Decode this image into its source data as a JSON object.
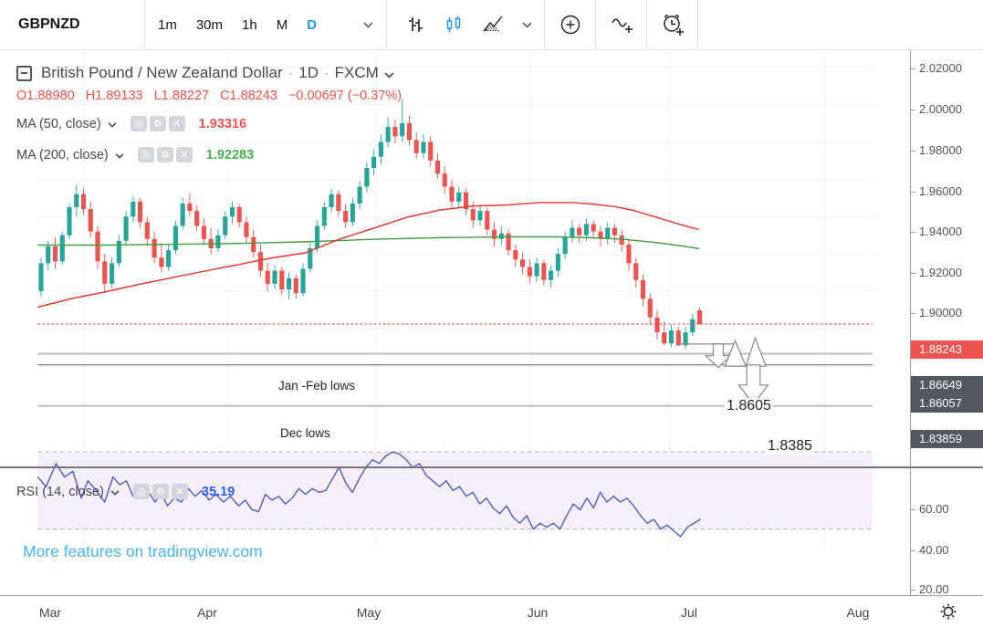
{
  "toolbar": {
    "symbol": "GBPNZD",
    "timeframes": [
      "1m",
      "30m",
      "1h",
      "M",
      "D"
    ],
    "active_timeframe": "D"
  },
  "legend": {
    "title": "British Pound / New Zealand Dollar",
    "dot1": "·",
    "interval": "1D",
    "dot2": "·",
    "provider": "FXCM",
    "ohlc": {
      "open": "O1.88980",
      "high": "H1.89133",
      "low": "L1.88227",
      "close": "C1.88243",
      "change": "−0.00697 (−0.37%)"
    },
    "ma50_label": "MA (50, close)",
    "ma50_value": "1.93316",
    "ma200_label": "MA (200, close)",
    "ma200_value": "1.92283"
  },
  "rsi_legend": {
    "label": "RSI (14, close)",
    "value": "35.19"
  },
  "watermark": "More features on tradingview.com",
  "annotations": {
    "jan_feb_lows": "Jan -Feb lows",
    "dec_lows": "Dec lows",
    "target_upper": "1.8605",
    "target_lower": "1.8385"
  },
  "price_axis": {
    "ticks": [
      "2.02000",
      "2.00000",
      "1.98000",
      "1.96000",
      "1.94000",
      "1.92000",
      "1.90000"
    ],
    "price_badge": "1.88243",
    "level_badges": [
      "1.86649",
      "1.86057",
      "1.83859"
    ]
  },
  "rsi_axis": {
    "ticks": [
      "60.00",
      "40.00",
      "20.00"
    ]
  },
  "time_axis": {
    "months": [
      "Mar",
      "Apr",
      "May",
      "Jun",
      "Jul",
      "Aug"
    ]
  },
  "colors": {
    "up": "#26a69a",
    "down": "#ef5350",
    "ma50": "#e53935",
    "ma200": "#43a047",
    "rsi_line": "#4a5dbf",
    "rsi_value": "#2962ff",
    "rsi_band_fill": "#f6eefa",
    "band_dash": "#b9bcc5",
    "grid": "#eef1f8",
    "price_line": "#f23645",
    "badge_red": "#ef5350",
    "badge_gray": "#53575f",
    "level_gray": "#b7bac2",
    "level_dark": "#6f737b",
    "active_blue": "#2196f3",
    "drawing_stroke": "#85888f"
  },
  "chart_data": {
    "type": "candlestick",
    "symbol": "GBPNZD",
    "interval": "1D",
    "provider": "FXCM",
    "visible_price_range": [
      1.828,
      2.028
    ],
    "visible_months": [
      "Mar",
      "Apr",
      "May",
      "Jun",
      "Jul",
      "Aug"
    ],
    "current_price": 1.88243,
    "last_ohlc": {
      "o": 1.8898,
      "h": 1.89133,
      "l": 1.88227,
      "c": 1.88243,
      "change": -0.00697,
      "change_pct": -0.37
    },
    "candles": [
      [
        1.9,
        1.918,
        1.897,
        1.915
      ],
      [
        1.915,
        1.927,
        1.911,
        1.924
      ],
      [
        1.924,
        1.929,
        1.912,
        1.916
      ],
      [
        1.916,
        1.932,
        1.914,
        1.93
      ],
      [
        1.93,
        1.947,
        1.928,
        1.945
      ],
      [
        1.945,
        1.957,
        1.94,
        1.952
      ],
      [
        1.952,
        1.955,
        1.941,
        1.944
      ],
      [
        1.944,
        1.948,
        1.929,
        1.932
      ],
      [
        1.932,
        1.935,
        1.912,
        1.916
      ],
      [
        1.916,
        1.92,
        1.899,
        1.904
      ],
      [
        1.904,
        1.918,
        1.902,
        1.915
      ],
      [
        1.915,
        1.93,
        1.913,
        1.927
      ],
      [
        1.927,
        1.943,
        1.925,
        1.94
      ],
      [
        1.94,
        1.951,
        1.937,
        1.948
      ],
      [
        1.948,
        1.95,
        1.934,
        1.937
      ],
      [
        1.937,
        1.94,
        1.924,
        1.928
      ],
      [
        1.928,
        1.932,
        1.915,
        1.918
      ],
      [
        1.918,
        1.926,
        1.91,
        1.913
      ],
      [
        1.913,
        1.925,
        1.911,
        1.922
      ],
      [
        1.922,
        1.938,
        1.92,
        1.935
      ],
      [
        1.935,
        1.95,
        1.933,
        1.947
      ],
      [
        1.947,
        1.953,
        1.94,
        1.943
      ],
      [
        1.943,
        1.946,
        1.932,
        1.935
      ],
      [
        1.935,
        1.939,
        1.925,
        1.928
      ],
      [
        1.928,
        1.934,
        1.92,
        1.923
      ],
      [
        1.923,
        1.933,
        1.921,
        1.93
      ],
      [
        1.93,
        1.943,
        1.928,
        1.94
      ],
      [
        1.94,
        1.948,
        1.936,
        1.945
      ],
      [
        1.945,
        1.947,
        1.934,
        1.937
      ],
      [
        1.937,
        1.94,
        1.926,
        1.929
      ],
      [
        1.929,
        1.933,
        1.918,
        1.921
      ],
      [
        1.921,
        1.925,
        1.908,
        1.911
      ],
      [
        1.911,
        1.915,
        1.9,
        1.904
      ],
      [
        1.904,
        1.914,
        1.901,
        1.911
      ],
      [
        1.911,
        1.913,
        1.898,
        1.901
      ],
      [
        1.901,
        1.91,
        1.8955,
        1.907
      ],
      [
        1.907,
        1.909,
        1.896,
        1.899
      ],
      [
        1.899,
        1.915,
        1.897,
        1.912
      ],
      [
        1.912,
        1.926,
        1.91,
        1.923
      ],
      [
        1.923,
        1.938,
        1.921,
        1.935
      ],
      [
        1.935,
        1.948,
        1.933,
        1.945
      ],
      [
        1.945,
        1.955,
        1.942,
        1.952
      ],
      [
        1.952,
        1.954,
        1.94,
        1.943
      ],
      [
        1.943,
        1.947,
        1.934,
        1.937
      ],
      [
        1.937,
        1.95,
        1.935,
        1.947
      ],
      [
        1.947,
        1.959,
        1.944,
        1.956
      ],
      [
        1.956,
        1.969,
        1.953,
        1.966
      ],
      [
        1.966,
        1.976,
        1.962,
        1.972
      ],
      [
        1.972,
        1.984,
        1.968,
        1.98
      ],
      [
        1.98,
        1.993,
        1.977,
        1.988
      ],
      [
        1.988,
        1.992,
        1.979,
        1.983
      ],
      [
        1.983,
        2.003,
        1.98,
        1.99
      ],
      [
        1.99,
        1.994,
        1.978,
        1.981
      ],
      [
        1.981,
        1.985,
        1.971,
        1.974
      ],
      [
        1.974,
        1.984,
        1.971,
        1.98
      ],
      [
        1.98,
        1.983,
        1.967,
        1.97
      ],
      [
        1.97,
        1.974,
        1.96,
        1.963
      ],
      [
        1.963,
        1.967,
        1.952,
        1.956
      ],
      [
        1.956,
        1.96,
        1.945,
        1.948
      ],
      [
        1.948,
        1.956,
        1.944,
        1.953
      ],
      [
        1.953,
        1.955,
        1.941,
        1.944
      ],
      [
        1.944,
        1.948,
        1.934,
        1.938
      ],
      [
        1.938,
        1.946,
        1.935,
        1.943
      ],
      [
        1.943,
        1.945,
        1.93,
        1.933
      ],
      [
        1.933,
        1.937,
        1.924,
        1.928
      ],
      [
        1.928,
        1.935,
        1.925,
        1.931
      ],
      [
        1.931,
        1.933,
        1.919,
        1.922
      ],
      [
        1.922,
        1.925,
        1.913,
        1.917
      ],
      [
        1.917,
        1.921,
        1.909,
        1.913
      ],
      [
        1.913,
        1.917,
        1.904,
        1.908
      ],
      [
        1.908,
        1.918,
        1.905,
        1.915
      ],
      [
        1.915,
        1.917,
        1.903,
        1.906
      ],
      [
        1.906,
        1.914,
        1.902,
        1.911
      ],
      [
        1.911,
        1.923,
        1.908,
        1.92
      ],
      [
        1.92,
        1.932,
        1.917,
        1.929
      ],
      [
        1.929,
        1.938,
        1.926,
        1.934
      ],
      [
        1.934,
        1.936,
        1.926,
        1.93
      ],
      [
        1.93,
        1.939,
        1.927,
        1.936
      ],
      [
        1.936,
        1.938,
        1.928,
        1.932
      ],
      [
        1.932,
        1.935,
        1.924,
        1.928
      ],
      [
        1.928,
        1.937,
        1.925,
        1.934
      ],
      [
        1.934,
        1.936,
        1.926,
        1.93
      ],
      [
        1.93,
        1.933,
        1.921,
        1.925
      ],
      [
        1.925,
        1.928,
        1.911,
        1.915
      ],
      [
        1.915,
        1.918,
        1.902,
        1.906
      ],
      [
        1.906,
        1.909,
        1.892,
        1.896
      ],
      [
        1.896,
        1.899,
        1.882,
        1.886
      ],
      [
        1.886,
        1.89,
        1.874,
        1.878
      ],
      [
        1.878,
        1.884,
        1.871,
        1.872
      ],
      [
        1.872,
        1.882,
        1.87,
        1.879
      ],
      [
        1.879,
        1.881,
        1.8705,
        1.871
      ],
      [
        1.871,
        1.881,
        1.869,
        1.878
      ],
      [
        1.878,
        1.888,
        1.876,
        1.885
      ],
      [
        1.8898,
        1.89133,
        1.88227,
        1.88243
      ]
    ],
    "ma50": {
      "period": 50,
      "source": "close",
      "last": 1.93316,
      "points": [
        [
          0,
          1.8915
        ],
        [
          40,
          1.896
        ],
        [
          80,
          1.8996
        ],
        [
          120,
          1.9036
        ],
        [
          160,
          1.9072
        ],
        [
          200,
          1.9108
        ],
        [
          240,
          1.9143
        ],
        [
          280,
          1.9179
        ],
        [
          320,
          1.9206
        ],
        [
          360,
          1.9278
        ],
        [
          400,
          1.9336
        ],
        [
          440,
          1.9395
        ],
        [
          480,
          1.9435
        ],
        [
          520,
          1.9457
        ],
        [
          560,
          1.9462
        ],
        [
          600,
          1.9475
        ],
        [
          640,
          1.9475
        ],
        [
          665,
          1.9466
        ],
        [
          690,
          1.9453
        ],
        [
          710,
          1.9435
        ],
        [
          730,
          1.9408
        ],
        [
          750,
          1.9381
        ],
        [
          770,
          1.9354
        ],
        [
          790,
          1.93316
        ]
      ]
    },
    "ma200": {
      "period": 200,
      "source": "close",
      "last": 1.92283,
      "points": [
        [
          0,
          1.9247
        ],
        [
          80,
          1.9247
        ],
        [
          160,
          1.9251
        ],
        [
          240,
          1.9256
        ],
        [
          320,
          1.9265
        ],
        [
          400,
          1.9278
        ],
        [
          480,
          1.9287
        ],
        [
          560,
          1.9291
        ],
        [
          620,
          1.9291
        ],
        [
          660,
          1.9287
        ],
        [
          700,
          1.9278
        ],
        [
          740,
          1.926
        ],
        [
          770,
          1.9242
        ],
        [
          790,
          1.92283
        ]
      ]
    },
    "rsi": {
      "period": 14,
      "source": "close",
      "last": 35.19,
      "band": [
        30,
        70
      ],
      "axis_ticks": [
        60,
        40,
        20
      ],
      "points": [
        [
          0,
          57
        ],
        [
          10,
          52
        ],
        [
          22,
          64
        ],
        [
          32,
          57
        ],
        [
          42,
          60
        ],
        [
          52,
          46
        ],
        [
          60,
          55
        ],
        [
          70,
          50
        ],
        [
          80,
          44
        ],
        [
          90,
          57
        ],
        [
          98,
          53
        ],
        [
          106,
          55
        ],
        [
          114,
          47
        ],
        [
          122,
          53
        ],
        [
          130,
          51
        ],
        [
          140,
          44
        ],
        [
          148,
          48
        ],
        [
          155,
          42
        ],
        [
          163,
          46
        ],
        [
          172,
          44
        ],
        [
          180,
          51
        ],
        [
          188,
          47
        ],
        [
          196,
          50
        ],
        [
          205,
          45
        ],
        [
          213,
          48
        ],
        [
          222,
          44
        ],
        [
          230,
          47
        ],
        [
          240,
          42
        ],
        [
          248,
          45
        ],
        [
          256,
          40
        ],
        [
          264,
          39
        ],
        [
          272,
          48
        ],
        [
          280,
          45
        ],
        [
          288,
          47
        ],
        [
          296,
          43
        ],
        [
          304,
          46
        ],
        [
          312,
          51
        ],
        [
          320,
          48
        ],
        [
          328,
          51
        ],
        [
          336,
          49
        ],
        [
          344,
          50
        ],
        [
          352,
          56
        ],
        [
          360,
          62
        ],
        [
          368,
          54
        ],
        [
          376,
          49
        ],
        [
          384,
          56
        ],
        [
          392,
          62
        ],
        [
          400,
          66
        ],
        [
          408,
          64
        ],
        [
          416,
          68
        ],
        [
          424,
          70
        ],
        [
          432,
          69
        ],
        [
          440,
          66
        ],
        [
          448,
          62
        ],
        [
          456,
          64
        ],
        [
          464,
          58
        ],
        [
          472,
          55
        ],
        [
          480,
          52
        ],
        [
          488,
          55
        ],
        [
          496,
          50
        ],
        [
          504,
          52
        ],
        [
          512,
          47
        ],
        [
          520,
          49
        ],
        [
          528,
          43
        ],
        [
          536,
          46
        ],
        [
          544,
          41
        ],
        [
          552,
          38
        ],
        [
          560,
          42
        ],
        [
          568,
          36
        ],
        [
          576,
          33
        ],
        [
          584,
          37
        ],
        [
          592,
          30
        ],
        [
          600,
          33
        ],
        [
          608,
          31
        ],
        [
          616,
          33
        ],
        [
          624,
          30
        ],
        [
          632,
          37
        ],
        [
          640,
          43
        ],
        [
          648,
          40
        ],
        [
          656,
          46
        ],
        [
          664,
          41
        ],
        [
          672,
          49
        ],
        [
          680,
          44
        ],
        [
          688,
          47
        ],
        [
          696,
          44
        ],
        [
          704,
          46
        ],
        [
          712,
          42
        ],
        [
          720,
          37
        ],
        [
          728,
          33
        ],
        [
          736,
          35
        ],
        [
          744,
          30
        ],
        [
          752,
          32
        ],
        [
          760,
          29
        ],
        [
          768,
          26
        ],
        [
          776,
          31
        ],
        [
          784,
          33
        ],
        [
          792,
          35.19
        ]
      ]
    },
    "horizontal_levels": [
      {
        "price": 1.88243,
        "style": "current-price-dashed-red"
      },
      {
        "price": 1.86649,
        "label": "Jan -Feb lows",
        "style": "gray"
      },
      {
        "price": 1.86057,
        "style": "dark-thin"
      },
      {
        "price": 1.83859,
        "label": "Dec lows",
        "style": "gray"
      }
    ],
    "downside_targets": [
      1.8605,
      1.8385
    ]
  }
}
